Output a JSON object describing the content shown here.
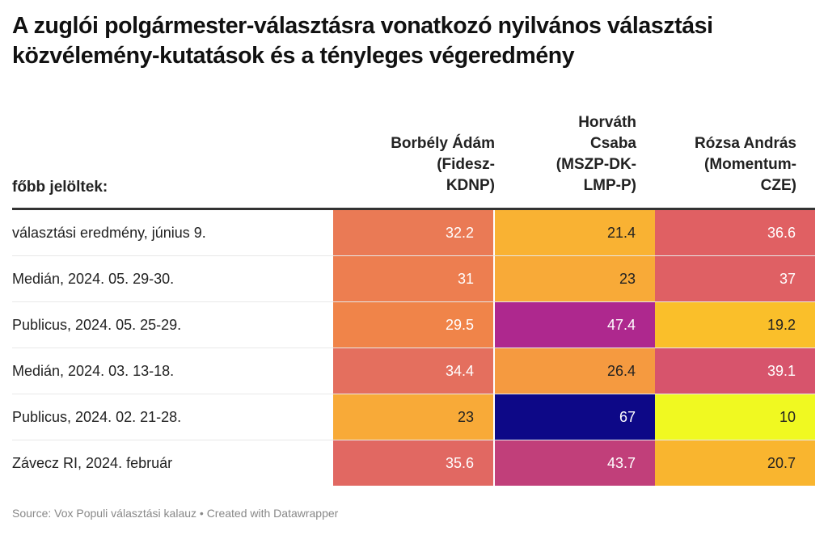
{
  "title": "A zuglói polgármester-választásra vonatkozó nyilvános választási közvélemény-kutatások és a tényleges végeredmény",
  "header": {
    "row_label": "főbb jelöltek:",
    "columns": [
      "Borbély Ádám (Fidesz-KDNP)",
      "Horváth Csaba (MSZP-DK-LMP-P)",
      "Rózsa András (Momentum-CZE)"
    ]
  },
  "footer": {
    "source": "Source: Vox Populi választási kalauz • Created with Datawrapper"
  },
  "chart_data": {
    "type": "heatmap",
    "title": "A zuglói polgármester-választásra vonatkozó nyilvános választási közvélemény-kutatások és a tényleges végeredmény",
    "row_header": "főbb jelöltek:",
    "columns": [
      "Borbély Ádám (Fidesz-KDNP)",
      "Horváth Csaba (MSZP-DK-LMP-P)",
      "Rózsa András (Momentum-CZE)"
    ],
    "rows": [
      {
        "label": "választási eredmény, június 9.",
        "values": [
          "32.2",
          "21.4",
          "36.6"
        ],
        "colors": [
          "#ea7a55",
          "#f9b233",
          "#e06063"
        ],
        "text_colors": [
          "#ffffff",
          "#222222",
          "#ffffff"
        ]
      },
      {
        "label": "Medián, 2024. 05. 29-30.",
        "values": [
          "31",
          "23",
          "37"
        ],
        "colors": [
          "#ed7e50",
          "#f8aa38",
          "#df6064"
        ],
        "text_colors": [
          "#ffffff",
          "#222222",
          "#ffffff"
        ]
      },
      {
        "label": "Publicus, 2024. 05. 25-29.",
        "values": [
          "29.5",
          "47.4",
          "19.2"
        ],
        "colors": [
          "#f08449",
          "#ae288e",
          "#fabf2a"
        ],
        "text_colors": [
          "#ffffff",
          "#ffffff",
          "#222222"
        ]
      },
      {
        "label": "Medián, 2024. 03. 13-18.",
        "values": [
          "34.4",
          "26.4",
          "39.1"
        ],
        "colors": [
          "#e46f5e",
          "#f59a40",
          "#d7546c"
        ],
        "text_colors": [
          "#ffffff",
          "#222222",
          "#ffffff"
        ]
      },
      {
        "label": "Publicus, 2024. 02. 21-28.",
        "values": [
          "23",
          "67",
          "10"
        ],
        "colors": [
          "#f8aa38",
          "#0d0887",
          "#f0f921"
        ],
        "text_colors": [
          "#222222",
          "#ffffff",
          "#222222"
        ]
      },
      {
        "label": "Závecz RI, 2024. február",
        "values": [
          "35.6",
          "43.7",
          "20.7"
        ],
        "colors": [
          "#e16862",
          "#c13f7a",
          "#f9b52f"
        ],
        "text_colors": [
          "#ffffff",
          "#ffffff",
          "#222222"
        ]
      }
    ],
    "color_scale": "plasma",
    "value_range": [
      10,
      67
    ]
  }
}
